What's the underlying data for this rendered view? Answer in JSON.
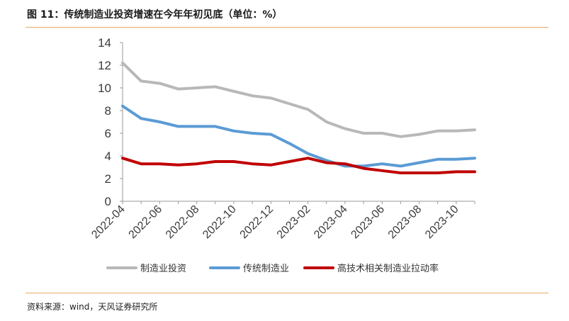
{
  "header": {
    "title": "图 11：传统制造业投资增速在今年年初见底（单位：%）"
  },
  "footer": {
    "source": "资料来源：wind，天风证券研究所"
  },
  "chart_data": {
    "type": "line",
    "title": "",
    "xlabel": "",
    "ylabel": "",
    "ylim": [
      0,
      14
    ],
    "yticks": [
      0,
      2,
      4,
      6,
      8,
      10,
      12,
      14
    ],
    "grid": false,
    "legend": "bottom",
    "categories": [
      "2022-04",
      "2022-05",
      "2022-06",
      "2022-07",
      "2022-08",
      "2022-09",
      "2022-10",
      "2022-11",
      "2022-12",
      "2023-01",
      "2023-02",
      "2023-03",
      "2023-04",
      "2023-05",
      "2023-06",
      "2023-07",
      "2023-08",
      "2023-09",
      "2023-10",
      "2023-11"
    ],
    "xtick_labels": [
      "2022-04",
      "2022-06",
      "2022-08",
      "2022-10",
      "2022-12",
      "2023-02",
      "2023-04",
      "2023-06",
      "2023-08",
      "2023-10"
    ],
    "series": [
      {
        "name": "制造业投资",
        "color": "#b8b8b8",
        "values": [
          12.2,
          10.6,
          10.4,
          9.9,
          10.0,
          10.1,
          9.7,
          9.3,
          9.1,
          8.6,
          8.1,
          7.0,
          6.4,
          6.0,
          6.0,
          5.7,
          5.9,
          6.2,
          6.2,
          6.3
        ]
      },
      {
        "name": "传统制造业",
        "color": "#5b9bd5",
        "values": [
          8.4,
          7.3,
          7.0,
          6.6,
          6.6,
          6.6,
          6.2,
          6.0,
          5.9,
          5.1,
          4.2,
          3.6,
          3.1,
          3.1,
          3.3,
          3.1,
          3.4,
          3.7,
          3.7,
          3.8
        ]
      },
      {
        "name": "高技术相关制造业拉动率",
        "color": "#c00000",
        "values": [
          3.8,
          3.3,
          3.3,
          3.2,
          3.3,
          3.5,
          3.5,
          3.3,
          3.2,
          3.5,
          3.8,
          3.4,
          3.3,
          2.9,
          2.7,
          2.5,
          2.5,
          2.5,
          2.6,
          2.6
        ]
      }
    ]
  }
}
